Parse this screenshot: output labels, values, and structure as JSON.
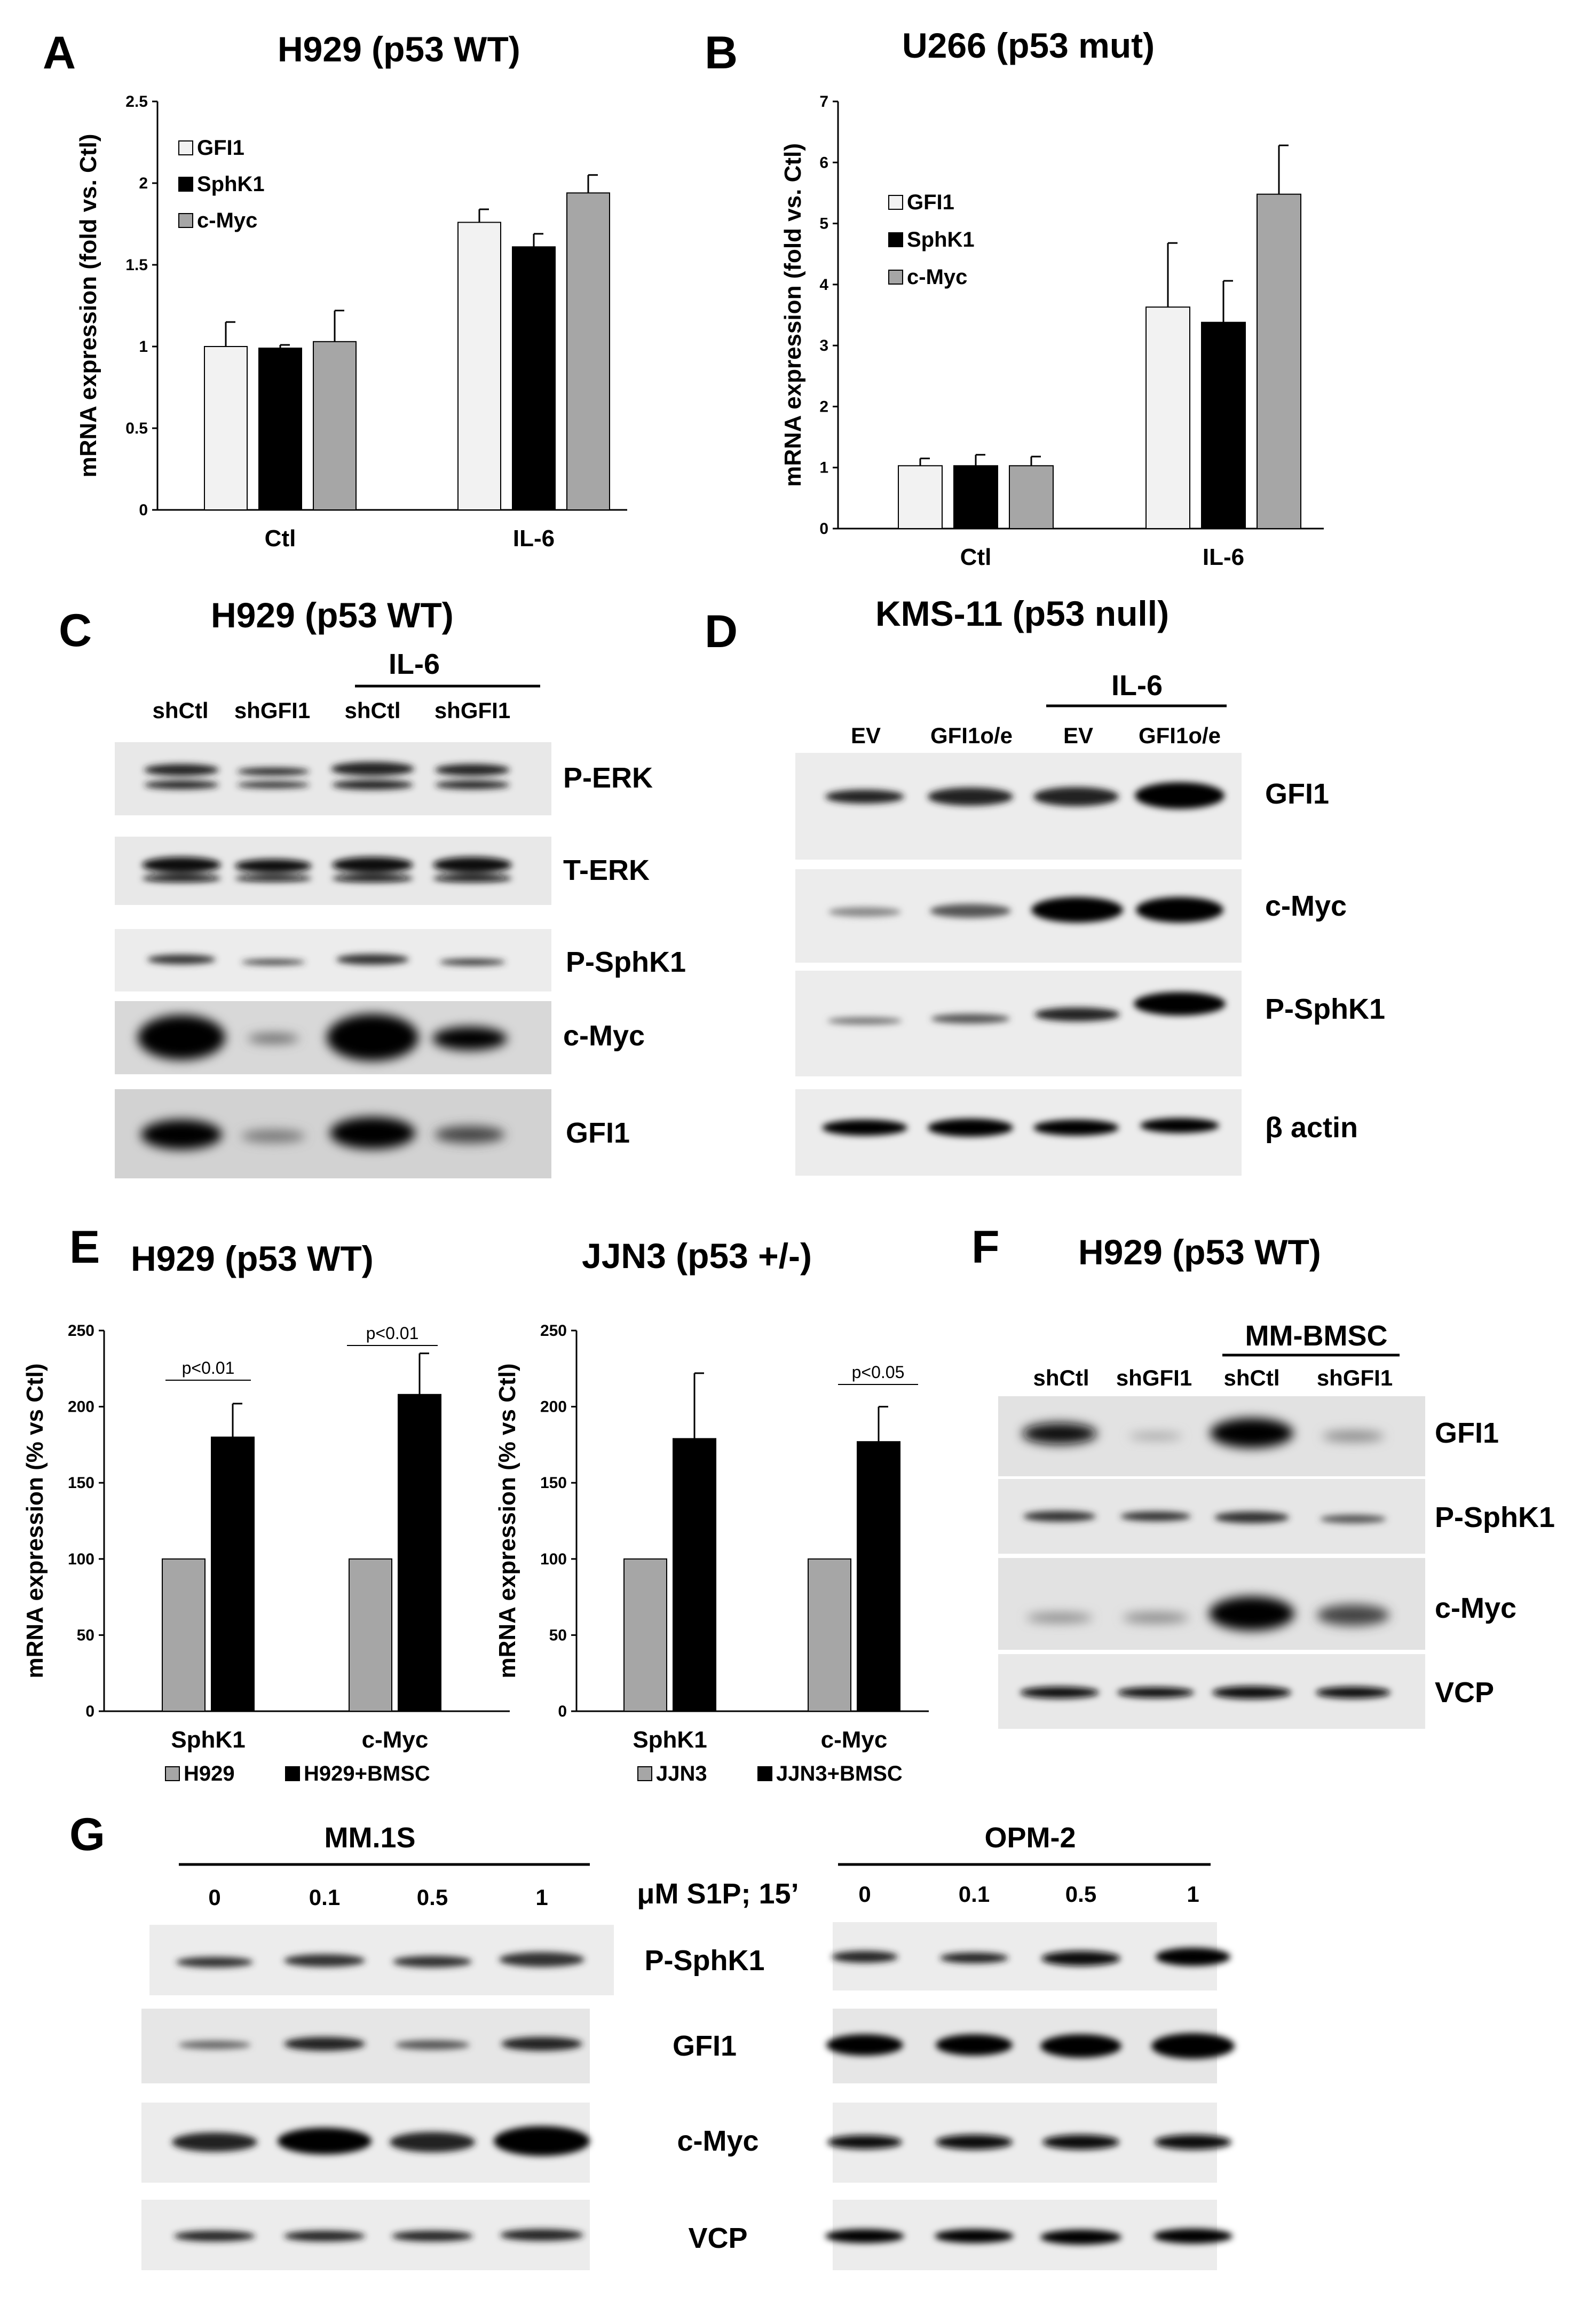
{
  "panels": {
    "A": {
      "letter": "A",
      "title": "H929 (p53 WT)"
    },
    "B": {
      "letter": "B",
      "title": "U266 (p53 mut)"
    },
    "C": {
      "letter": "C",
      "title": "H929 (p53 WT)",
      "treatment": "IL-6",
      "lanes": [
        "shCtl",
        "shGFI1",
        "shCtl",
        "shGFI1"
      ],
      "bands": [
        "P-ERK",
        "T-ERK",
        "P-SphK1",
        "c-Myc",
        "GFI1"
      ]
    },
    "D": {
      "letter": "D",
      "title": "KMS-11 (p53 null)",
      "treatment": "IL-6",
      "lanes": [
        "EV",
        "GFI1o/e",
        "EV",
        "GFI1o/e"
      ],
      "bands": [
        "GFI1",
        "c-Myc",
        "P-SphK1",
        "β actin"
      ]
    },
    "E": {
      "letter": "E",
      "title_left": "H929 (p53 WT)",
      "title_right": "JJN3 (p53 +/-)",
      "pvals_left": [
        "p<0.01",
        "p<0.01"
      ],
      "pval_right": "p<0.05"
    },
    "F": {
      "letter": "F",
      "title": "H929 (p53 WT)",
      "treatment": "MM-BMSC",
      "lanes": [
        "shCtl",
        "shGFI1",
        "shCtl",
        "shGFI1"
      ],
      "bands": [
        "GFI1",
        "P-SphK1",
        "c-Myc",
        "VCP"
      ]
    },
    "G": {
      "letter": "G",
      "left_cell": "MM.1S",
      "right_cell": "OPM-2",
      "treatment": "μM S1P; 15’",
      "doses": [
        "0",
        "0.1",
        "0.5",
        "1"
      ],
      "bands": [
        "P-SphK1",
        "GFI1",
        "c-Myc",
        "VCP"
      ]
    }
  },
  "colors": {
    "white_bar": "#f2f2f2",
    "black_bar": "#000000",
    "gray_bar": "#a6a6a6",
    "blot_bg": "#e6e6e6"
  },
  "chart_data": [
    {
      "id": "A",
      "type": "bar",
      "title": "H929 (p53 WT)",
      "ylabel": "mRNA expression (fold vs. Ctl)",
      "xlabel": "",
      "categories": [
        "Ctl",
        "IL-6"
      ],
      "ylim": [
        0,
        2.5
      ],
      "yticks": [
        "0",
        "0.5",
        "1",
        "1.5",
        "2",
        "2.5"
      ],
      "legend": "top-left",
      "series": [
        {
          "name": "GFI1",
          "values": [
            1.0,
            1.76
          ],
          "errors": [
            0.15,
            0.08
          ]
        },
        {
          "name": "SphK1",
          "values": [
            0.99,
            1.61
          ],
          "errors": [
            0.02,
            0.08
          ]
        },
        {
          "name": "c-Myc",
          "values": [
            1.03,
            1.94
          ],
          "errors": [
            0.19,
            0.11
          ]
        }
      ]
    },
    {
      "id": "B",
      "type": "bar",
      "title": "U266 (p53 mut)",
      "ylabel": "mRNA expression (fold vs. Ctl)",
      "xlabel": "",
      "categories": [
        "Ctl",
        "IL-6"
      ],
      "ylim": [
        0,
        7
      ],
      "yticks": [
        "0",
        "1",
        "2",
        "3",
        "4",
        "5",
        "6",
        "7"
      ],
      "legend": "top-left",
      "series": [
        {
          "name": "GFI1",
          "values": [
            1.03,
            3.63
          ],
          "errors": [
            0.12,
            1.05
          ]
        },
        {
          "name": "SphK1",
          "values": [
            1.03,
            3.38
          ],
          "errors": [
            0.18,
            0.68
          ]
        },
        {
          "name": "c-Myc",
          "values": [
            1.03,
            5.48
          ],
          "errors": [
            0.15,
            0.8
          ]
        }
      ]
    },
    {
      "id": "E-left",
      "type": "bar",
      "title": "H929 (p53 WT)",
      "ylabel": "mRNA expression (% vs Ctl)",
      "xlabel": "",
      "categories": [
        "SphK1",
        "c-Myc"
      ],
      "ylim": [
        0,
        250
      ],
      "yticks": [
        "0",
        "50",
        "100",
        "150",
        "200",
        "250"
      ],
      "legend": "bottom",
      "series": [
        {
          "name": "H929",
          "values": [
            100,
            100
          ],
          "errors": [
            0,
            0
          ]
        },
        {
          "name": "H929+BMSC",
          "values": [
            180,
            208
          ],
          "errors": [
            22,
            27
          ]
        }
      ]
    },
    {
      "id": "E-right",
      "type": "bar",
      "title": "JJN3 (p53 +/-)",
      "ylabel": "mRNA expression (% vs Ctl)",
      "xlabel": "",
      "categories": [
        "SphK1",
        "c-Myc"
      ],
      "ylim": [
        0,
        250
      ],
      "yticks": [
        "0",
        "50",
        "100",
        "150",
        "200",
        "250"
      ],
      "legend": "bottom",
      "series": [
        {
          "name": "JJN3",
          "values": [
            100,
            100
          ],
          "errors": [
            0,
            0
          ]
        },
        {
          "name": "JJN3+BMSC",
          "values": [
            179,
            177
          ],
          "errors": [
            43,
            23
          ]
        }
      ]
    }
  ]
}
